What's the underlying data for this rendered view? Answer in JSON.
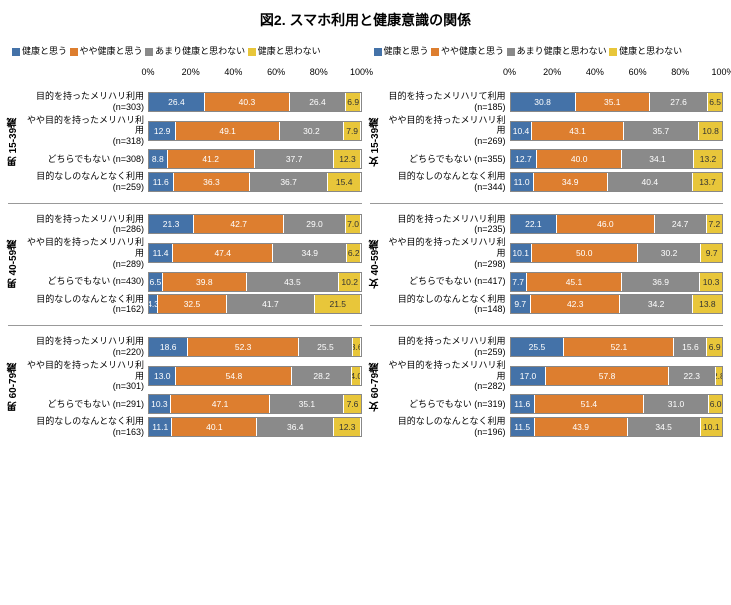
{
  "title": "図2. スマホ利用と健康意識の関係",
  "legend": [
    {
      "label": "健康と思う",
      "color": "#4472a8"
    },
    {
      "label": "やや健康と思う",
      "color": "#dd7e2f"
    },
    {
      "label": "あまり健康と思わない",
      "color": "#8a8a8a"
    },
    {
      "label": "健康と思わない",
      "color": "#e8c63a"
    }
  ],
  "axis_ticks": [
    "0%",
    "20%",
    "40%",
    "60%",
    "80%",
    "100%"
  ],
  "panels": [
    {
      "side": "男",
      "groups": [
        {
          "age": "男 15-39歳",
          "rows": [
            {
              "label": "目的を持ったメリハリ利用\n(n=303)",
              "v": [
                26.4,
                40.3,
                26.4,
                6.9
              ]
            },
            {
              "label": "やや目的を持ったメリハリ利用\n(n=318)",
              "v": [
                12.9,
                49.1,
                30.2,
                7.9
              ]
            },
            {
              "label": "どちらでもない (n=308)",
              "v": [
                8.8,
                41.2,
                37.7,
                12.3
              ]
            },
            {
              "label": "目的なしのなんとなく利用\n(n=259)",
              "v": [
                11.6,
                36.3,
                36.7,
                15.4
              ]
            }
          ]
        },
        {
          "age": "男 40-59歳",
          "rows": [
            {
              "label": "目的を持ったメリハリ利用\n(n=286)",
              "v": [
                21.3,
                42.7,
                29.0,
                7.0
              ]
            },
            {
              "label": "やや目的を持ったメリハリ利用\n(n=289)",
              "v": [
                11.4,
                47.4,
                34.9,
                6.2
              ]
            },
            {
              "label": "どちらでもない (n=430)",
              "v": [
                6.5,
                39.8,
                43.5,
                10.2
              ]
            },
            {
              "label": "目的なしのなんとなく利用\n(n=162)",
              "v": [
                4.3,
                32.5,
                41.7,
                21.5
              ]
            }
          ]
        },
        {
          "age": "男 60-79歳",
          "rows": [
            {
              "label": "目的を持ったメリハリ利用\n(n=220)",
              "v": [
                18.6,
                52.3,
                25.5,
                3.6
              ]
            },
            {
              "label": "やや目的を持ったメリハリ利用\n(n=301)",
              "v": [
                13.0,
                54.8,
                28.2,
                4.0
              ]
            },
            {
              "label": "どちらでもない (n=291)",
              "v": [
                10.3,
                47.1,
                35.1,
                7.6
              ]
            },
            {
              "label": "目的なしのなんとなく利用\n(n=163)",
              "v": [
                11.1,
                40.1,
                36.4,
                12.3
              ]
            }
          ]
        }
      ]
    },
    {
      "side": "女",
      "groups": [
        {
          "age": "女 15-39歳",
          "rows": [
            {
              "label": "目的を持ったメリハリて利用\n(n=185)",
              "v": [
                30.8,
                35.1,
                27.6,
                6.5
              ]
            },
            {
              "label": "やや目的を持ったメリハリ利用\n(n=269)",
              "v": [
                10.4,
                43.1,
                35.7,
                10.8
              ]
            },
            {
              "label": "どちらでもない (n=355)",
              "v": [
                12.7,
                40.0,
                34.1,
                13.2
              ]
            },
            {
              "label": "目的なしのなんとなく利用\n(n=344)",
              "v": [
                11.0,
                34.9,
                40.4,
                13.7
              ]
            }
          ]
        },
        {
          "age": "女 40-59歳",
          "rows": [
            {
              "label": "目的を持ったメリハリ利用\n(n=235)",
              "v": [
                22.1,
                46.0,
                24.7,
                7.2
              ]
            },
            {
              "label": "やや目的を持ったメリハリ利用\n(n=298)",
              "v": [
                10.1,
                50.0,
                30.2,
                9.7
              ]
            },
            {
              "label": "どちらでもない (n=417)",
              "v": [
                7.7,
                45.1,
                36.9,
                10.3
              ]
            },
            {
              "label": "目的なしのなんとなく利用\n(n=148)",
              "v": [
                9.7,
                42.3,
                34.2,
                13.8
              ]
            }
          ]
        },
        {
          "age": "女 60-79歳",
          "rows": [
            {
              "label": "目的を持ったメリハリ利用\n(n=259)",
              "v": [
                25.5,
                52.1,
                15.6,
                6.9
              ]
            },
            {
              "label": "やや目的を持ったメリハリ利用\n(n=282)",
              "v": [
                17.0,
                57.8,
                22.3,
                2.8
              ]
            },
            {
              "label": "どちらでもない (n=319)",
              "v": [
                11.6,
                51.4,
                31.0,
                6.0
              ]
            },
            {
              "label": "目的なしのなんとなく利用\n(n=196)",
              "v": [
                11.5,
                43.9,
                34.5,
                10.1
              ]
            }
          ]
        }
      ]
    }
  ]
}
